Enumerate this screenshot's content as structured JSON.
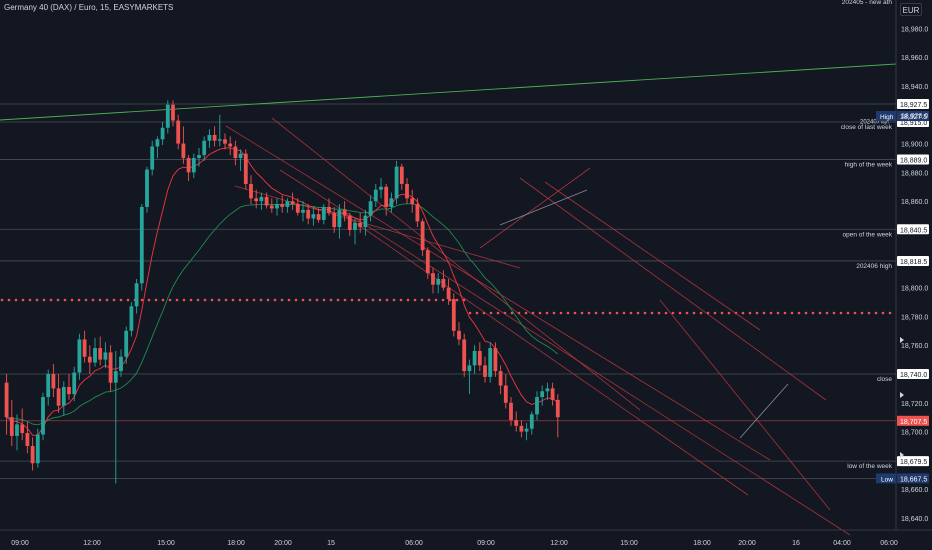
{
  "header": {
    "title": "Germany 40 (DAX) / Euro, 15, EASYMARKETS",
    "currency": "EUR"
  },
  "chart_data": {
    "type": "candlestick",
    "title": "Germany 40 (DAX) / Euro, 15, EASYMARKETS",
    "ylim": [
      18630,
      19000
    ],
    "y_ticks": [
      18640,
      18660,
      18680,
      18700,
      18720,
      18740,
      18760,
      18780,
      18800,
      18820,
      18840,
      18860,
      18880,
      18900,
      18920,
      18940,
      18960,
      18980
    ],
    "x_ticks": [
      "09:00",
      "12:00",
      "15:00",
      "18:00",
      "20:00",
      "15",
      "06:00",
      "09:00",
      "12:00",
      "15:00",
      "18:00",
      "20:00",
      "16",
      "04:00",
      "06:00"
    ],
    "candles": [
      [
        18734,
        18740,
        18698,
        18710
      ],
      [
        18710,
        18722,
        18690,
        18697
      ],
      [
        18697,
        18712,
        18687,
        18705
      ],
      [
        18705,
        18716,
        18694,
        18699
      ],
      [
        18699,
        18707,
        18685,
        18690
      ],
      [
        18690,
        18696,
        18673,
        18678
      ],
      [
        18678,
        18702,
        18675,
        18698
      ],
      [
        18698,
        18727,
        18694,
        18724
      ],
      [
        18724,
        18743,
        18718,
        18740
      ],
      [
        18740,
        18747,
        18724,
        18730
      ],
      [
        18730,
        18740,
        18713,
        18718
      ],
      [
        18718,
        18735,
        18711,
        18731
      ],
      [
        18731,
        18740,
        18722,
        18726
      ],
      [
        18726,
        18745,
        18721,
        18741
      ],
      [
        18741,
        18768,
        18736,
        18764
      ],
      [
        18764,
        18770,
        18748,
        18752
      ],
      [
        18752,
        18760,
        18740,
        18748
      ],
      [
        18748,
        18765,
        18745,
        18758
      ],
      [
        18758,
        18766,
        18746,
        18750
      ],
      [
        18750,
        18762,
        18744,
        18755
      ],
      [
        18755,
        18760,
        18728,
        18734
      ],
      [
        18734,
        18756,
        18664,
        18742
      ],
      [
        18742,
        18757,
        18738,
        18752
      ],
      [
        18752,
        18773,
        18747,
        18770
      ],
      [
        18770,
        18790,
        18766,
        18787
      ],
      [
        18787,
        18806,
        18782,
        18803
      ],
      [
        18803,
        18858,
        18798,
        18856
      ],
      [
        18856,
        18884,
        18852,
        18882
      ],
      [
        18882,
        18902,
        18878,
        18898
      ],
      [
        18898,
        18905,
        18890,
        18903
      ],
      [
        18903,
        18915,
        18899,
        18911
      ],
      [
        18911,
        18930,
        18907,
        18927
      ],
      [
        18927,
        18930,
        18912,
        18916
      ],
      [
        18916,
        18920,
        18896,
        18900
      ],
      [
        18900,
        18912,
        18886,
        18890
      ],
      [
        18890,
        18892,
        18874,
        18880
      ],
      [
        18880,
        18893,
        18876,
        18890
      ],
      [
        18890,
        18897,
        18884,
        18892
      ],
      [
        18892,
        18905,
        18888,
        18902
      ],
      [
        18902,
        18910,
        18897,
        18906
      ],
      [
        18906,
        18912,
        18898,
        18902
      ],
      [
        18902,
        18920,
        18898,
        18903
      ],
      [
        18903,
        18907,
        18896,
        18900
      ],
      [
        18900,
        18905,
        18892,
        18898
      ],
      [
        18898,
        18902,
        18885,
        18890
      ],
      [
        18890,
        18896,
        18881,
        18893
      ],
      [
        18893,
        18896,
        18868,
        18872
      ],
      [
        18872,
        18878,
        18858,
        18862
      ],
      [
        18862,
        18868,
        18855,
        18860
      ],
      [
        18860,
        18866,
        18854,
        18863
      ],
      [
        18863,
        18866,
        18855,
        18857
      ],
      [
        18857,
        18862,
        18852,
        18855
      ],
      [
        18855,
        18862,
        18850,
        18858
      ],
      [
        18858,
        18864,
        18852,
        18856
      ],
      [
        18856,
        18862,
        18852,
        18860
      ],
      [
        18860,
        18866,
        18854,
        18858
      ],
      [
        18858,
        18862,
        18850,
        18852
      ],
      [
        18852,
        18860,
        18846,
        18854
      ],
      [
        18854,
        18858,
        18844,
        18848
      ],
      [
        18848,
        18856,
        18843,
        18851
      ],
      [
        18851,
        18855,
        18845,
        18847
      ],
      [
        18847,
        18858,
        18844,
        18856
      ],
      [
        18856,
        18862,
        18850,
        18852
      ],
      [
        18852,
        18856,
        18838,
        18842
      ],
      [
        18842,
        18858,
        18834,
        18854
      ],
      [
        18854,
        18860,
        18846,
        18850
      ],
      [
        18850,
        18852,
        18836,
        18840
      ],
      [
        18840,
        18848,
        18830,
        18845
      ],
      [
        18845,
        18852,
        18838,
        18842
      ],
      [
        18842,
        18854,
        18836,
        18850
      ],
      [
        18850,
        18864,
        18846,
        18860
      ],
      [
        18860,
        18872,
        18856,
        18868
      ],
      [
        18868,
        18876,
        18862,
        18870
      ],
      [
        18870,
        18872,
        18850,
        18856
      ],
      [
        18856,
        18866,
        18852,
        18862
      ],
      [
        18862,
        18888,
        18858,
        18884
      ],
      [
        18884,
        18886,
        18868,
        18872
      ],
      [
        18872,
        18876,
        18858,
        18862
      ],
      [
        18862,
        18868,
        18852,
        18858
      ],
      [
        18858,
        18862,
        18842,
        18846
      ],
      [
        18846,
        18848,
        18822,
        18826
      ],
      [
        18826,
        18828,
        18806,
        18810
      ],
      [
        18810,
        18814,
        18796,
        18802
      ],
      [
        18802,
        18810,
        18796,
        18806
      ],
      [
        18806,
        18812,
        18798,
        18800
      ],
      [
        18800,
        18806,
        18788,
        18792
      ],
      [
        18792,
        18796,
        18766,
        18770
      ],
      [
        18770,
        18776,
        18760,
        18764
      ],
      [
        18764,
        18768,
        18738,
        18742
      ],
      [
        18742,
        18750,
        18726,
        18746
      ],
      [
        18746,
        18760,
        18740,
        18756
      ],
      [
        18756,
        18762,
        18742,
        18746
      ],
      [
        18746,
        18752,
        18734,
        18738
      ],
      [
        18738,
        18762,
        18734,
        18758
      ],
      [
        18758,
        18762,
        18738,
        18742
      ],
      [
        18742,
        18746,
        18726,
        18732
      ],
      [
        18732,
        18740,
        18716,
        18720
      ],
      [
        18720,
        18724,
        18704,
        18708
      ],
      [
        18708,
        18714,
        18700,
        18704
      ],
      [
        18704,
        18708,
        18696,
        18700
      ],
      [
        18700,
        18706,
        18694,
        18702
      ],
      [
        18702,
        18714,
        18698,
        18712
      ],
      [
        18712,
        18728,
        18708,
        18724
      ],
      [
        18724,
        18732,
        18718,
        18728
      ],
      [
        18728,
        18734,
        18722,
        18730
      ],
      [
        18730,
        18734,
        18718,
        18722
      ],
      [
        18722,
        18726,
        18696,
        18710
      ]
    ],
    "price_levels": [
      {
        "price": 18927.5,
        "label": "",
        "tag": "18,927.5"
      },
      {
        "price": 18915.0,
        "label": "close of last week",
        "tag": "18,915.0"
      },
      {
        "price": 18889.0,
        "label": "high of the week",
        "tag": "18,889.0"
      },
      {
        "price": 18840.5,
        "label": "open of the week",
        "tag": "18,840.5"
      },
      {
        "price": 18818.5,
        "label": "202406 high",
        "tag": "18,818.5"
      },
      {
        "price": 18740.0,
        "label": "close",
        "tag": "18,740.0"
      },
      {
        "price": 18679.5,
        "label": "low of the week",
        "tag": "18,679.5"
      }
    ],
    "right_tags": {
      "high_label": "High",
      "high_value": "18,927.5",
      "low_label": "Low",
      "low_value": "18,667.5",
      "last_value": "18,707.5",
      "tag_18920": "18,920.0",
      "label_202407": "202407",
      "label_202407_suffix": "high",
      "label_top": "202405 - new ath"
    },
    "colors": {
      "up": "#26a69a",
      "down": "#ef5350",
      "background": "#131722",
      "grid": "#2a2e39",
      "text": "#d1d4dc",
      "ma": "#f23645",
      "ma_slow": "#1e8c4e",
      "trend": "#5c8a5c"
    }
  }
}
